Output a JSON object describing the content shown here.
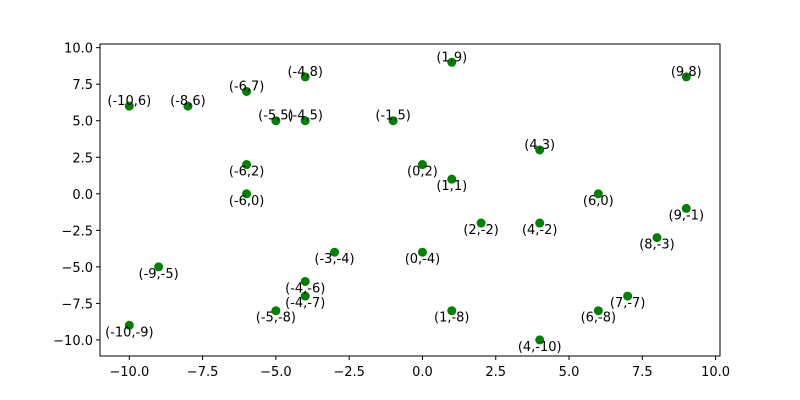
{
  "chart_data": {
    "type": "scatter",
    "title": "",
    "xlabel": "",
    "ylabel": "",
    "xlim": [
      -11.0,
      10.15
    ],
    "ylim": [
      -11.1,
      10.25
    ],
    "grid": false,
    "marker_color": "#008000",
    "x_ticks": [
      -10.0,
      -7.5,
      -5.0,
      -2.5,
      0.0,
      2.5,
      5.0,
      7.5,
      10.0
    ],
    "y_ticks": [
      -10.0,
      -7.5,
      -5.0,
      -2.5,
      0.0,
      2.5,
      5.0,
      7.5,
      10.0
    ],
    "x_tick_labels": [
      "−10.0",
      "−7.5",
      "−5.0",
      "−2.5",
      "0.0",
      "2.5",
      "5.0",
      "7.5",
      "10.0"
    ],
    "y_tick_labels": [
      "−10.0",
      "−7.5",
      "−5.0",
      "−2.5",
      "0.0",
      "2.5",
      "5.0",
      "7.5",
      "10.0"
    ],
    "points": [
      {
        "x": 1,
        "y": 9,
        "label": "(1,9)",
        "pos": "above"
      },
      {
        "x": -4,
        "y": 8,
        "label": "(-4,8)",
        "pos": "above"
      },
      {
        "x": 9,
        "y": 8,
        "label": "(9,8)",
        "pos": "above"
      },
      {
        "x": -6,
        "y": 7,
        "label": "(-6,7)",
        "pos": "above"
      },
      {
        "x": -10,
        "y": 6,
        "label": "(-10,6)",
        "pos": "above"
      },
      {
        "x": -8,
        "y": 6,
        "label": "(-8,6)",
        "pos": "above"
      },
      {
        "x": -5,
        "y": 5,
        "label": "(-5,5)",
        "pos": "above"
      },
      {
        "x": -4,
        "y": 5,
        "label": "(-4,5)",
        "pos": "above"
      },
      {
        "x": -1,
        "y": 5,
        "label": "(-1,5)",
        "pos": "above"
      },
      {
        "x": 4,
        "y": 3,
        "label": "(4,3)",
        "pos": "above"
      },
      {
        "x": -6,
        "y": 2,
        "label": "(-6,2)",
        "pos": "below"
      },
      {
        "x": 0,
        "y": 2,
        "label": "(0,2)",
        "pos": "below"
      },
      {
        "x": 1,
        "y": 1,
        "label": "(1,1)",
        "pos": "below"
      },
      {
        "x": -6,
        "y": 0,
        "label": "(-6,0)",
        "pos": "below"
      },
      {
        "x": 6,
        "y": 0,
        "label": "(6,0)",
        "pos": "below"
      },
      {
        "x": 9,
        "y": -1,
        "label": "(9,-1)",
        "pos": "below"
      },
      {
        "x": 2,
        "y": -2,
        "label": "(2,-2)",
        "pos": "below"
      },
      {
        "x": 4,
        "y": -2,
        "label": "(4,-2)",
        "pos": "below"
      },
      {
        "x": 8,
        "y": -3,
        "label": "(8,-3)",
        "pos": "below"
      },
      {
        "x": -3,
        "y": -4,
        "label": "(-3,-4)",
        "pos": "below"
      },
      {
        "x": 0,
        "y": -4,
        "label": "(0,-4)",
        "pos": "below"
      },
      {
        "x": -9,
        "y": -5,
        "label": "(-9,-5)",
        "pos": "below"
      },
      {
        "x": -4,
        "y": -6,
        "label": "(-4,-6)",
        "pos": "below"
      },
      {
        "x": -4,
        "y": -7,
        "label": "(-4,-7)",
        "pos": "below"
      },
      {
        "x": 7,
        "y": -7,
        "label": "(7,-7)",
        "pos": "below"
      },
      {
        "x": -5,
        "y": -8,
        "label": "(-5,-8)",
        "pos": "below"
      },
      {
        "x": 1,
        "y": -8,
        "label": "(1,-8)",
        "pos": "below"
      },
      {
        "x": 6,
        "y": -8,
        "label": "(6,-8)",
        "pos": "below"
      },
      {
        "x": -10,
        "y": -9,
        "label": "(-10,-9)",
        "pos": "below"
      },
      {
        "x": 4,
        "y": -10,
        "label": "(4,-10)",
        "pos": "below"
      }
    ]
  }
}
